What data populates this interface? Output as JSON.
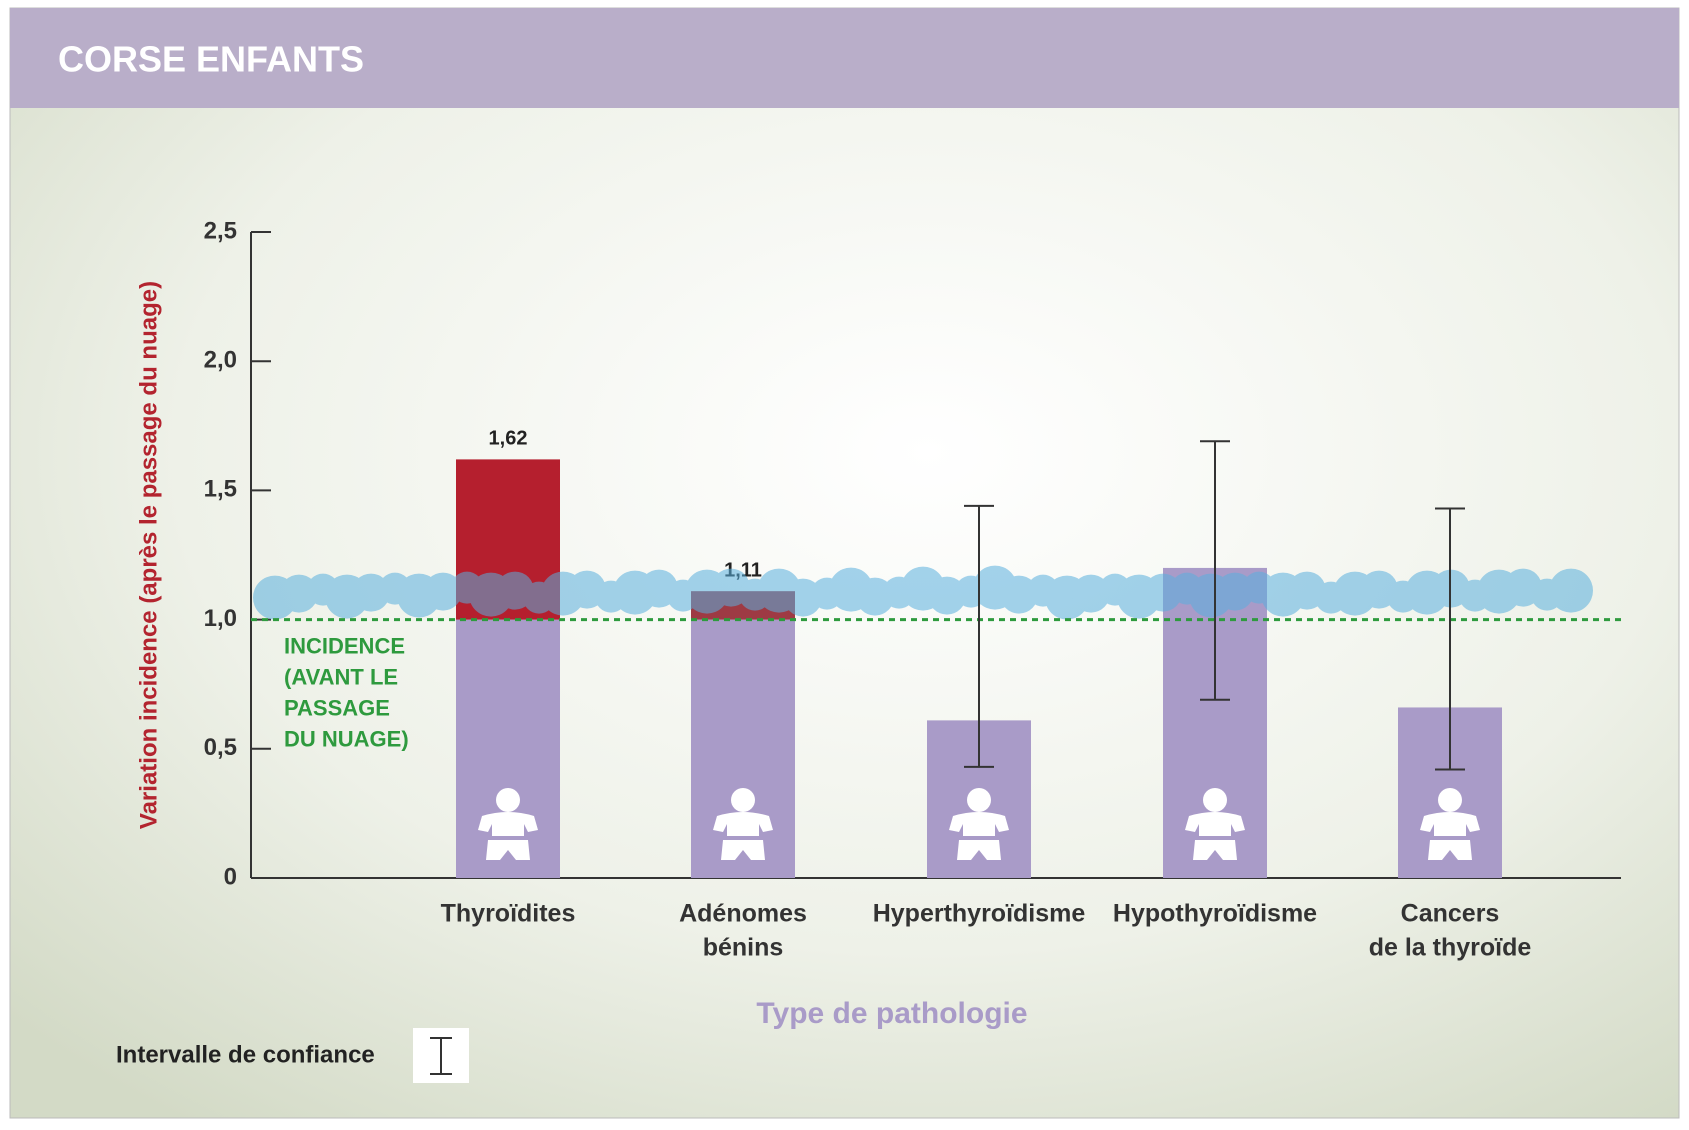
{
  "chart_data": {
    "type": "bar",
    "title": "CORSE ENFANTS",
    "y_label": "Variation incidence (après le passage du nuage)",
    "x_label": "Type de pathologie",
    "categories": [
      [
        "Thyroïdites"
      ],
      [
        "Adénomes",
        "bénins"
      ],
      [
        "Hyperthyroïdisme"
      ],
      [
        "Hypothyroïdisme"
      ],
      [
        "Cancers",
        "de la thyroïde"
      ]
    ],
    "values": [
      1.62,
      1.11,
      0.61,
      1.2,
      0.66
    ],
    "value_labels": [
      "1,62",
      "1,11",
      null,
      null,
      null
    ],
    "ci_low": [
      null,
      null,
      0.43,
      0.69,
      0.42
    ],
    "ci_high": [
      null,
      null,
      1.44,
      1.69,
      1.43
    ],
    "color": "#a99bc8",
    "excess_color": [
      "#b51f2e",
      "#9e3a44",
      null,
      null,
      null
    ],
    "reference": {
      "value": 1.0,
      "color": "#2e9a3e",
      "label": [
        "INCIDENCE",
        "(AVANT LE",
        "PASSAGE",
        "DU NUAGE)"
      ]
    },
    "ylim": [
      0,
      2.5
    ],
    "yticks": [
      0,
      {
        "value": 0.5,
        "label": "0,5"
      },
      {
        "value": 1.0,
        "label": "1,0"
      },
      {
        "value": 1.5,
        "label": "1,5"
      },
      {
        "value": 2.0,
        "label": "2,0"
      },
      {
        "value": 2.5,
        "label": "2,5"
      }
    ],
    "legend": "Intervalle de confiance"
  }
}
